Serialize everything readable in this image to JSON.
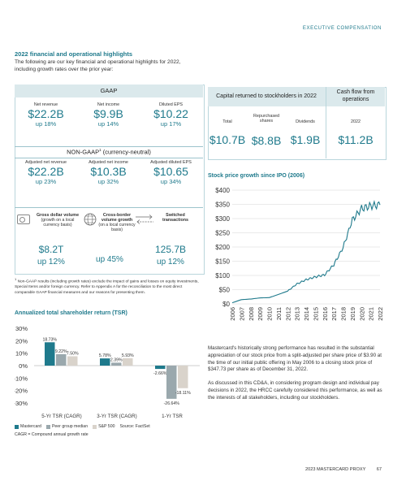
{
  "header": {
    "section": "EXECUTIVE COMPENSATION"
  },
  "intro": {
    "title": "2022 financial and operational highlights",
    "text": "The following are our key financial and operational highlights for 2022, including growth rates over the prior year:"
  },
  "gaap": {
    "heading": "GAAP",
    "items": [
      {
        "label": "Net revenue",
        "value": "$22.2B",
        "growth": "up 18%"
      },
      {
        "label": "Net income",
        "value": "$9.9B",
        "growth": "up 14%"
      },
      {
        "label": "Diluted EPS",
        "value": "$10.22",
        "growth": "up 17%"
      }
    ]
  },
  "nongaap": {
    "heading": "NON-GAAP",
    "superscript": "1",
    "heading_suffix": " (currency-neutral)",
    "items": [
      {
        "label": "Adjusted net revenue",
        "value": "$22.2B",
        "growth": "up 23%"
      },
      {
        "label": "Adjusted net income",
        "value": "$10.3B",
        "growth": "up 32%"
      },
      {
        "label": "Adjusted diluted EPS",
        "value": "$10.65",
        "growth": "up 34%"
      }
    ]
  },
  "operational": {
    "items": [
      {
        "label": "Gross dollar volume",
        "sublabel": "(growth on a local currency basis)",
        "value": "$8.2T",
        "growth": "up 12%",
        "icon": "card-icon"
      },
      {
        "label": "Cross-border volume growth",
        "sublabel": "(on a local currency basis)",
        "value": "",
        "growth": "up 45%",
        "icon": "globe-icon"
      },
      {
        "label": "Switched transactions",
        "sublabel": "",
        "value": "125.7B",
        "growth": "up 12%",
        "icon": "arrows-icon"
      }
    ]
  },
  "footnote": {
    "marker": "1",
    "text": "Non-GAAP results (including growth rates) exclude the impact of gains and losses on equity investments, Special Items and/or foreign currency. Refer to Appendix A for the reconciliation to the most direct comparable GAAP financial measures and our reasons for presenting them."
  },
  "capital": {
    "title": "Capital returned to stockholders in 2022",
    "cash_title": "Cash flow from operations",
    "items": [
      {
        "label": "Total",
        "value": "$10.7B"
      },
      {
        "label": "Repurchased shares",
        "value": "$8.8B"
      },
      {
        "label": "Dividends",
        "value": "$1.9B"
      },
      {
        "label": "2022",
        "value": "$11.2B"
      }
    ]
  },
  "stock": {
    "title": "Stock price growth since IPO (2006)"
  },
  "paragraphs": [
    "Mastercard's historically strong performance has resulted in the substantial appreciation of our stock price from a split-adjusted per share price of $3.90 at the time of our initial public offering in May 2006 to a closing stock price of $347.73 per share as of December 31, 2022.",
    "As discussed in this CD&A, in considering program design and individual pay decisions in 2022, the HRCC carefully considered this performance, as well as the interests of all stakeholders, including our stockholders."
  ],
  "tsr": {
    "title": "Annualized total shareholder return (TSR)",
    "legend": [
      "Mastercard",
      "Peer group median",
      "S&P 500"
    ],
    "source": "Source: FactSet",
    "note": "CAGR = Compound annual growth rate"
  },
  "colors": {
    "mastercard": "#1f7a8c",
    "peer": "#9aa8ad",
    "sp500": "#d9d3cb",
    "accent": "#1f7a8c"
  },
  "chart_data": [
    {
      "type": "line",
      "title": "Stock price growth since IPO (2006)",
      "x": [
        2006,
        2007,
        2008,
        2009,
        2010,
        2011,
        2012,
        2013,
        2014,
        2015,
        2016,
        2017,
        2018,
        2019,
        2020,
        2021,
        2022
      ],
      "series": [
        {
          "values": [
            3.9,
            15,
            17,
            21,
            22,
            33,
            45,
            70,
            85,
            95,
            102,
            138,
            198,
            295,
            335,
            345,
            348
          ]
        }
      ],
      "ylim": [
        0,
        400
      ],
      "yticks": [
        "$0",
        "$50",
        "$100",
        "$150",
        "$200",
        "$250",
        "$300",
        "$350",
        "$400"
      ],
      "xticks": [
        "2006",
        "2007",
        "2008",
        "2009",
        "2010",
        "2011",
        "2012",
        "2013",
        "2014",
        "2015",
        "2016",
        "2017",
        "2018",
        "2019",
        "2020",
        "2021",
        "2022"
      ],
      "grid": true
    },
    {
      "type": "bar",
      "title": "Annualized total shareholder return (TSR)",
      "categories": [
        "5-Yr TSR (CAGR)",
        "3-Yr TSR (CAGR)",
        "1-Yr TSR"
      ],
      "series": [
        {
          "name": "Mastercard",
          "values": [
            18.73,
            5.78,
            -2.66
          ],
          "labels": [
            "18.73%",
            "5.78%",
            "-2.66%"
          ]
        },
        {
          "name": "Peer group median",
          "values": [
            9.22,
            2.39,
            -26.64
          ],
          "labels": [
            "9.22%",
            "2.39%",
            "-26.64%"
          ]
        },
        {
          "name": "S&P 500",
          "values": [
            7.5,
            5.93,
            -18.11
          ],
          "labels": [
            "7.50%",
            "5.93%",
            "-18.11%"
          ]
        }
      ],
      "ylim": [
        -30,
        30
      ],
      "yticks": [
        "30%",
        "20%",
        "10%",
        "0%",
        "-10%",
        "-20%",
        "-30%"
      ]
    }
  ],
  "page": {
    "footer": "2023 MASTERCARD PROXY",
    "number": "67"
  }
}
